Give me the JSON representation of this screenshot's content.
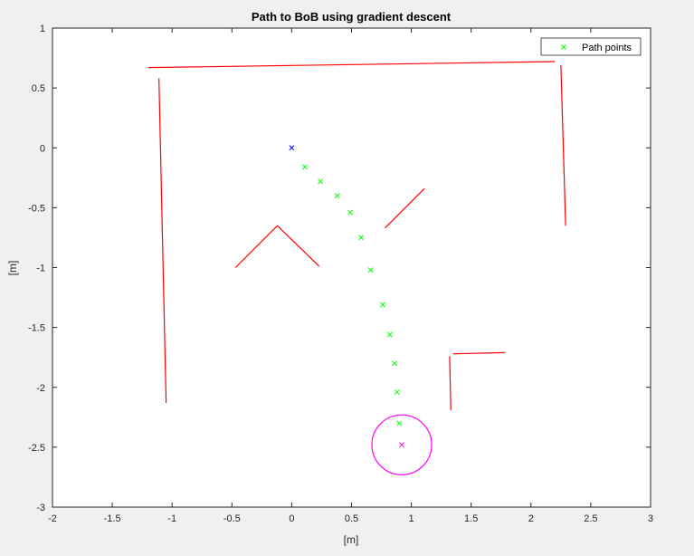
{
  "chart_data": {
    "type": "scatter",
    "title": "Path to BoB using gradient descent",
    "xlabel": "[m]",
    "ylabel": "[m]",
    "xlim": [
      -2,
      3
    ],
    "ylim": [
      -3,
      1
    ],
    "xticks": [
      -2,
      -1.5,
      -1,
      -0.5,
      0,
      0.5,
      1,
      1.5,
      2,
      2.5,
      3
    ],
    "yticks": [
      -3,
      -2.5,
      -2,
      -1.5,
      -1,
      -0.5,
      0,
      0.5,
      1
    ],
    "grid": false,
    "legend_position": "top-right",
    "series": [
      {
        "name": "Path points",
        "marker": "x",
        "color": "#00ff00",
        "points": [
          [
            0.11,
            -0.16
          ],
          [
            0.24,
            -0.28
          ],
          [
            0.38,
            -0.4
          ],
          [
            0.49,
            -0.54
          ],
          [
            0.58,
            -0.75
          ],
          [
            0.66,
            -1.02
          ],
          [
            0.76,
            -1.31
          ],
          [
            0.82,
            -1.56
          ],
          [
            0.86,
            -1.8
          ],
          [
            0.88,
            -2.04
          ],
          [
            0.9,
            -2.3
          ]
        ]
      },
      {
        "role": "start",
        "marker": "x",
        "color": "#0000ff",
        "points": [
          [
            0.0,
            0.0
          ]
        ]
      },
      {
        "role": "goal",
        "marker": "x",
        "color": "#ff00ff",
        "points": [
          [
            0.92,
            -2.48
          ]
        ]
      }
    ],
    "goal_circle": {
      "center": [
        0.92,
        -2.48
      ],
      "radius": 0.25,
      "color": "#ff00ff"
    },
    "walls": {
      "color": "#ff0000",
      "segments": [
        [
          [
            -1.2,
            0.67
          ],
          [
            2.2,
            0.72
          ]
        ],
        [
          [
            -1.11,
            0.58
          ],
          [
            -1.05,
            -2.13
          ]
        ],
        [
          [
            2.25,
            0.69
          ],
          [
            2.29,
            -0.65
          ]
        ],
        [
          [
            -0.47,
            -1.0
          ],
          [
            -0.12,
            -0.65
          ]
        ],
        [
          [
            -0.12,
            -0.65
          ],
          [
            0.23,
            -0.99
          ]
        ],
        [
          [
            0.78,
            -0.67
          ],
          [
            1.11,
            -0.34
          ]
        ],
        [
          [
            1.32,
            -1.74
          ],
          [
            1.33,
            -2.19
          ]
        ],
        [
          [
            1.35,
            -1.72
          ],
          [
            1.78,
            -1.71
          ]
        ]
      ]
    }
  }
}
